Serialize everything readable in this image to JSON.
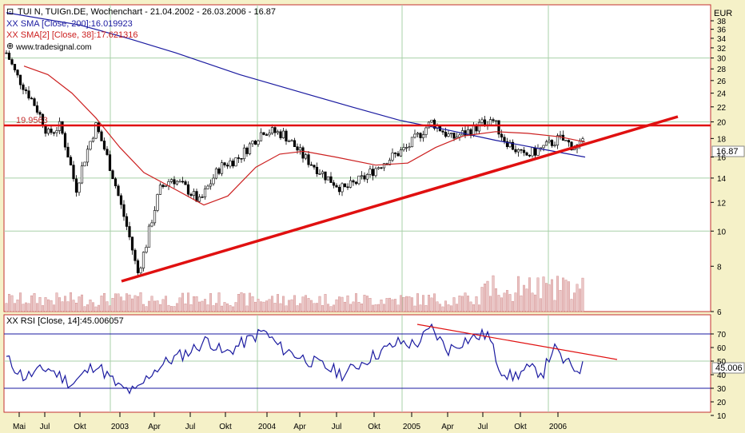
{
  "chart_data": [
    {
      "type": "candlestick",
      "title": "TUI N, TUIGn.DE, Wochenchart - 21.04.2002 - 26.03.2006 - 16.87",
      "source": "www.tradesignal.com",
      "unit": "EUR",
      "last_price_label": "16.87",
      "y_ticks": [
        38,
        36,
        34,
        32,
        30,
        28,
        26,
        24,
        22,
        20,
        18,
        16,
        14,
        12,
        10,
        8,
        6
      ],
      "x_ticks": [
        "Mai",
        "Jul",
        "Okt",
        "2003",
        "Apr",
        "Jul",
        "Okt",
        "2004",
        "Apr",
        "Jul",
        "Okt",
        "2005",
        "Apr",
        "Jul",
        "Okt",
        "2006"
      ],
      "horizontal_line": {
        "value": 19.95,
        "label": "19.9563"
      },
      "series": [
        {
          "name": "XX SMA [Close, 200]:16.019923",
          "color": "#1a1aa0"
        },
        {
          "name": "XX SMA[2] [Close, 38]:17.621316",
          "color": "#cc2020"
        }
      ],
      "trendline": {
        "from": [
          "2003-03",
          7.2
        ],
        "to": [
          "2006-08",
          21.2
        ],
        "color": "#e01010"
      }
    },
    {
      "type": "line",
      "title": "XX RSI [Close, 14]:45.006057",
      "last_value_label": "45.006",
      "y_ticks": [
        70,
        60,
        50,
        40,
        30,
        20,
        10
      ],
      "bands": [
        70,
        30
      ],
      "color": "#1a1aa0"
    }
  ]
}
